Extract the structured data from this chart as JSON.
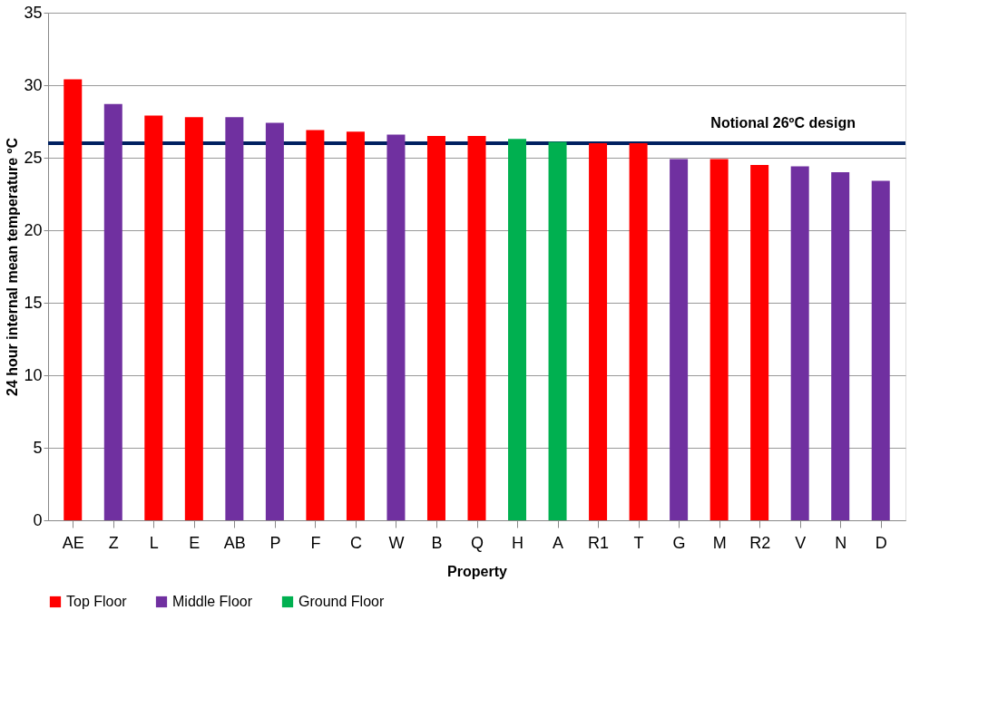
{
  "chart_data": {
    "type": "bar",
    "xlabel": "Property",
    "ylabel": "24 hour internal mean temperature ºC",
    "categories": [
      "AE",
      "Z",
      "L",
      "E",
      "AB",
      "P",
      "F",
      "C",
      "W",
      "B",
      "Q",
      "H",
      "A",
      "R1",
      "T",
      "G",
      "M",
      "R2",
      "V",
      "N",
      "D"
    ],
    "series": [
      {
        "name": "Top Floor",
        "color": "#ff0000",
        "values": [
          30.4,
          null,
          27.9,
          27.8,
          null,
          null,
          26.9,
          26.8,
          null,
          26.5,
          26.5,
          null,
          null,
          26.0,
          26.0,
          null,
          24.9,
          24.5,
          null,
          null,
          null
        ]
      },
      {
        "name": "Middle Floor",
        "color": "#7030a0",
        "values": [
          null,
          28.7,
          null,
          null,
          27.8,
          27.4,
          null,
          null,
          26.6,
          null,
          null,
          null,
          null,
          null,
          null,
          24.9,
          null,
          null,
          24.4,
          24.0,
          23.4
        ]
      },
      {
        "name": "Ground Floor",
        "color": "#00b050",
        "values": [
          null,
          null,
          null,
          null,
          null,
          null,
          null,
          null,
          null,
          null,
          null,
          26.3,
          26.1,
          null,
          null,
          null,
          null,
          null,
          null,
          null,
          null
        ]
      }
    ],
    "ref_lines": [
      {
        "axis": "y",
        "value": 26,
        "label": "Notional 26ºC design",
        "color": "#002060"
      }
    ],
    "ylim": [
      0,
      35
    ],
    "yticks": [
      0,
      5,
      10,
      15,
      20,
      25,
      30,
      35
    ],
    "grid": "y",
    "legend": "bottom"
  }
}
